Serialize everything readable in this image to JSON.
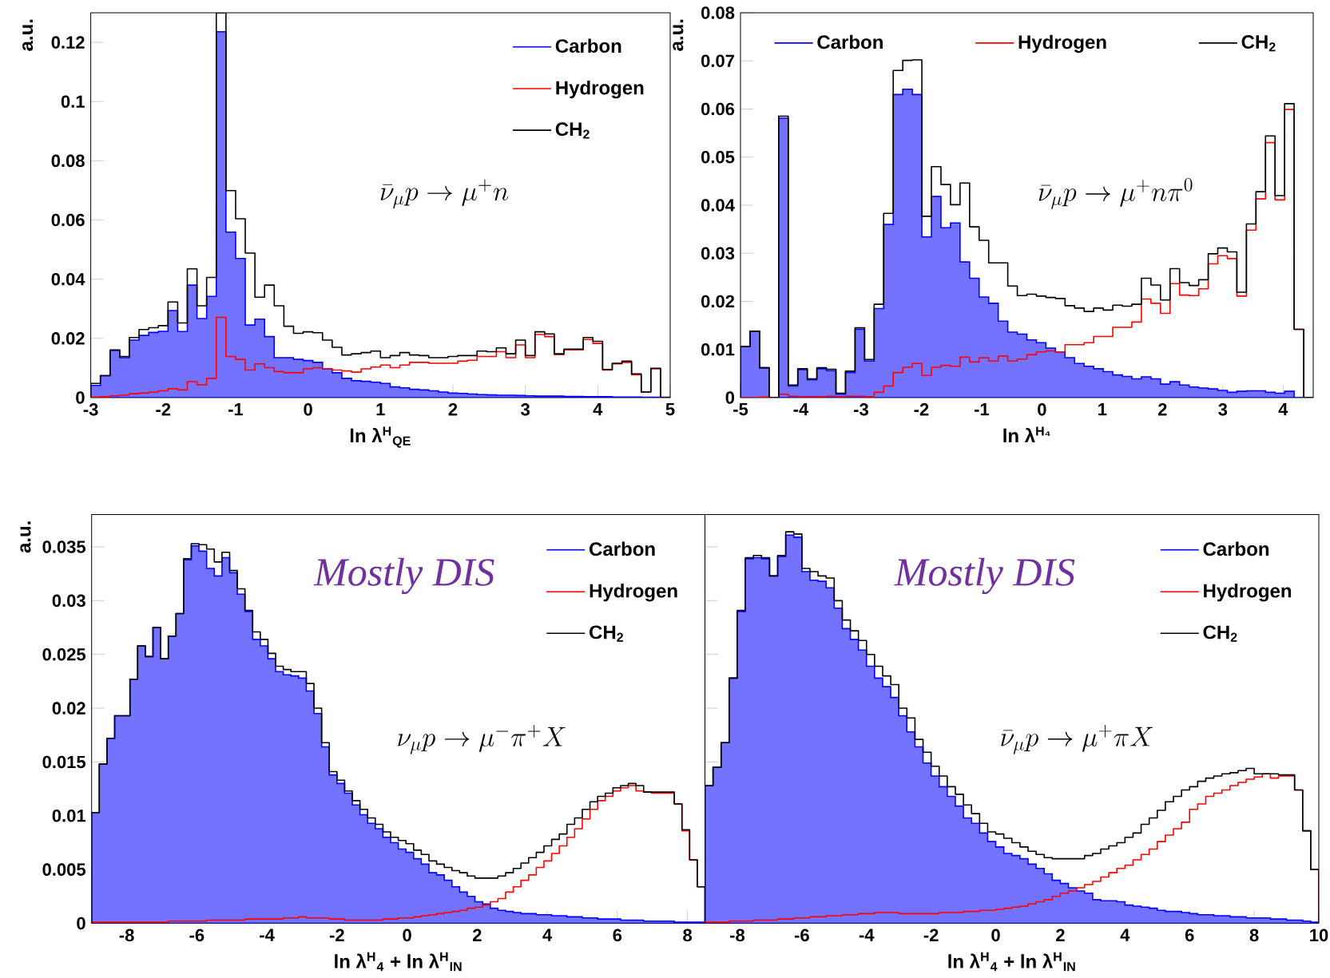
{
  "chart_data": [
    {
      "type": "histogram",
      "xlabel": "ln λ$^{H}$$_{QE}$",
      "ylabel": "a.u.",
      "annotations": [
        "\\bar{\\nu}_{\\mu}p \\rightarrow \\mu^{+}n"
      ],
      "legend": "top right",
      "xlim": [
        -3,
        5
      ],
      "ylim": [
        0,
        0.13
      ],
      "xticks": [
        -3,
        -2,
        -1,
        0,
        1,
        2,
        3,
        4,
        5
      ],
      "yticks": [
        0,
        0.02,
        0.04,
        0.06,
        0.08,
        0.1,
        0.12
      ],
      "bins": [
        -3,
        -2.8667,
        -2.7333,
        -2.6,
        -2.4667,
        -2.3333,
        -2.2,
        -2.0667,
        -1.9333,
        -1.8,
        -1.6667,
        -1.5333,
        -1.4,
        -1.2667,
        -1.1333,
        -1,
        -0.8667,
        -0.7333,
        -0.6,
        -0.4667,
        -0.3333,
        -0.2,
        -0.0667,
        0.0667,
        0.2,
        0.3333,
        0.4667,
        0.6,
        0.7333,
        0.8667,
        1,
        1.1333,
        1.2667,
        1.4,
        1.5333,
        1.6667,
        1.8,
        1.9333,
        2.0667,
        2.2,
        2.3333,
        2.4667,
        2.6,
        2.7333,
        2.8667,
        3,
        3.1333,
        3.2667,
        3.4,
        3.5333,
        3.6667,
        3.8,
        3.9333,
        4.0667,
        4.2,
        4.3333,
        4.4667,
        4.6,
        4.7333,
        4.8667,
        5
      ],
      "series": [
        {
          "name": "Carbon",
          "color": "#0000ff",
          "values": [
            0.0041,
            0.0074,
            0.0159,
            0.0135,
            0.0194,
            0.021,
            0.022,
            0.0224,
            0.0294,
            0.0223,
            0.038,
            0.0267,
            0.0342,
            0.1236,
            0.0559,
            0.047,
            0.0245,
            0.0265,
            0.0206,
            0.0135,
            0.0135,
            0.0129,
            0.0125,
            0.0119,
            0.0097,
            0.0084,
            0.0065,
            0.0057,
            0.0055,
            0.0052,
            0.0048,
            0.0036,
            0.0033,
            0.0028,
            0.0026,
            0.0023,
            0.0019,
            0.0015,
            0.0014,
            0.0012,
            0.001,
            0.0009,
            0.0008,
            0.0008,
            0.0007,
            0.0006,
            0.0005,
            0.0005,
            0.0005,
            0.0004,
            0.0004,
            0.0003,
            0.0003,
            0.0003,
            0.0002,
            0.0002,
            0.0002,
            0.0001,
            0.0001,
            0.0001
          ]
        },
        {
          "name": "Hydrogen",
          "color": "#ff0000",
          "values": [
            0.0002,
            0.0003,
            0.0006,
            0.0008,
            0.0013,
            0.0015,
            0.0018,
            0.0023,
            0.003,
            0.0026,
            0.0054,
            0.0043,
            0.0065,
            0.0271,
            0.0139,
            0.0129,
            0.0093,
            0.0114,
            0.0101,
            0.0088,
            0.0084,
            0.0084,
            0.0097,
            0.0101,
            0.0097,
            0.0093,
            0.009,
            0.0086,
            0.0097,
            0.0103,
            0.011,
            0.0101,
            0.011,
            0.0119,
            0.0119,
            0.0116,
            0.0116,
            0.0116,
            0.0123,
            0.0126,
            0.0139,
            0.0139,
            0.0155,
            0.0135,
            0.0178,
            0.0135,
            0.0213,
            0.0206,
            0.0145,
            0.0161,
            0.0161,
            0.0196,
            0.0183,
            0.0093,
            0.0114,
            0.0119,
            0.0077,
            0.0019,
            0.0097,
            0
          ]
        },
        {
          "name": "CH$_{2}$",
          "color": "#000000",
          "values": [
            0.0048,
            0.0074,
            0.0161,
            0.0139,
            0.0203,
            0.023,
            0.0236,
            0.0243,
            0.0323,
            0.0252,
            0.0435,
            0.031,
            0.0406,
            0.13,
            0.0699,
            0.0604,
            0.0488,
            0.0339,
            0.038,
            0.031,
            0.0241,
            0.0217,
            0.0222,
            0.0219,
            0.0194,
            0.017,
            0.0144,
            0.0148,
            0.0152,
            0.0157,
            0.0135,
            0.0142,
            0.0152,
            0.0144,
            0.0142,
            0.0135,
            0.0135,
            0.0139,
            0.0142,
            0.0142,
            0.0157,
            0.0155,
            0.0168,
            0.0148,
            0.0194,
            0.0142,
            0.0222,
            0.0215,
            0.0148,
            0.0164,
            0.0164,
            0.0203,
            0.019,
            0.0095,
            0.0116,
            0.0123,
            0.008,
            0.0019,
            0.0099,
            0
          ]
        }
      ]
    },
    {
      "type": "histogram",
      "xlabel": "ln λ$^{H₄}$",
      "ylabel": "a.u.",
      "annotations": [
        "\\bar{\\nu}_{\\mu}p \\rightarrow \\mu^{+}n\\pi^{0}"
      ],
      "legend": "top",
      "xlim": [
        -5,
        4.5
      ],
      "ylim": [
        0,
        0.08
      ],
      "xticks": [
        -5,
        -4,
        -3,
        -2,
        -1,
        0,
        1,
        2,
        3,
        4
      ],
      "yticks": [
        0,
        0.01,
        0.02,
        0.03,
        0.04,
        0.05,
        0.06,
        0.07,
        0.08
      ],
      "bins": [
        -5,
        -4.8417,
        -4.6833,
        -4.525,
        -4.3667,
        -4.2083,
        -4.05,
        -3.8917,
        -3.7333,
        -3.575,
        -3.4167,
        -3.2583,
        -3.1,
        -2.9417,
        -2.7833,
        -2.625,
        -2.4667,
        -2.3083,
        -2.15,
        -1.9917,
        -1.8333,
        -1.675,
        -1.5167,
        -1.3583,
        -1.2,
        -1.0417,
        -0.8833,
        -0.725,
        -0.5667,
        -0.4083,
        -0.25,
        -0.0917,
        0.0667,
        0.225,
        0.3833,
        0.5417,
        0.7,
        0.8583,
        1.0167,
        1.175,
        1.3333,
        1.4917,
        1.65,
        1.8083,
        1.9667,
        2.125,
        2.2833,
        2.4417,
        2.6,
        2.7583,
        2.9167,
        3.075,
        3.2333,
        3.3917,
        3.55,
        3.7083,
        3.8667,
        4.025,
        4.1833,
        4.3417,
        4.5
      ],
      "series": [
        {
          "name": "Carbon",
          "color": "#0000ff",
          "values": [
            0.0106,
            0.0138,
            0.0062,
            0,
            0.0581,
            0.0024,
            0.0058,
            0.0037,
            0.006,
            0.0056,
            0.0007,
            0.0052,
            0.0142,
            0.0076,
            0.0185,
            0.036,
            0.063,
            0.0641,
            0.063,
            0.0334,
            0.0418,
            0.0353,
            0.0363,
            0.0282,
            0.0248,
            0.0209,
            0.0196,
            0.0159,
            0.0136,
            0.0132,
            0.012,
            0.0114,
            0.0103,
            0.0095,
            0.0083,
            0.0071,
            0.0065,
            0.006,
            0.0054,
            0.0047,
            0.0044,
            0.0039,
            0.0043,
            0.0039,
            0.0028,
            0.0033,
            0.0026,
            0.0022,
            0.002,
            0.0018,
            0.0015,
            0.0011,
            0.0013,
            0.0014,
            0.0014,
            0.0011,
            0.0009,
            0.0013,
            0,
            0
          ]
        },
        {
          "name": "Hydrogen",
          "color": "#ff0000",
          "values": [
            0,
            0,
            0.0001,
            0,
            0.0007,
            0.0003,
            0.0002,
            0.0002,
            0.0002,
            0.0003,
            0.0002,
            0.0003,
            0.0003,
            0.0002,
            0.0011,
            0.0024,
            0.0052,
            0.0063,
            0.0071,
            0.0046,
            0.0063,
            0.0067,
            0.0065,
            0.0084,
            0.0074,
            0.0083,
            0.0076,
            0.0086,
            0.0076,
            0.008,
            0.0089,
            0.0095,
            0.0097,
            0.0095,
            0.011,
            0.011,
            0.0114,
            0.0127,
            0.0127,
            0.0146,
            0.0146,
            0.0157,
            0.0205,
            0.0196,
            0.0175,
            0.0237,
            0.0213,
            0.0212,
            0.0226,
            0.0278,
            0.0295,
            0.0289,
            0.0211,
            0.0348,
            0.0413,
            0.053,
            0.0411,
            0.0599,
            0.0142,
            0
          ]
        },
        {
          "name": "CH$_{2}$",
          "color": "#000000",
          "values": [
            0.0106,
            0.0138,
            0.0062,
            0,
            0.0585,
            0.0026,
            0.006,
            0.0039,
            0.0062,
            0.0059,
            0.0009,
            0.0055,
            0.0145,
            0.0079,
            0.0194,
            0.0383,
            0.068,
            0.0701,
            0.0702,
            0.0377,
            0.048,
            0.0443,
            0.0401,
            0.0446,
            0.0355,
            0.0327,
            0.028,
            0.028,
            0.0232,
            0.0212,
            0.0215,
            0.0211,
            0.0208,
            0.0206,
            0.0191,
            0.0186,
            0.0179,
            0.0186,
            0.0182,
            0.0192,
            0.019,
            0.0194,
            0.0248,
            0.0234,
            0.0203,
            0.0268,
            0.0239,
            0.0233,
            0.0245,
            0.0299,
            0.0311,
            0.0303,
            0.0219,
            0.0361,
            0.0428,
            0.0544,
            0.042,
            0.0611,
            0.0142,
            0
          ]
        }
      ]
    },
    {
      "type": "histogram",
      "subtitle": "Mostly DIS",
      "xlabel": "ln λ$^{H}$$_{4}$ + ln λ$^{H}$$_{IN}$",
      "ylabel": "a.u.",
      "annotations": [
        "\\nu_{\\mu}p \\rightarrow \\mu^{-}\\pi^{+}X"
      ],
      "legend": "top right",
      "xlim": [
        -9,
        8.5
      ],
      "ylim": [
        0,
        0.038
      ],
      "xticks": [
        -8,
        -6,
        -4,
        -2,
        0,
        2,
        4,
        6,
        8
      ],
      "yticks": [
        0,
        0.005,
        0.01,
        0.015,
        0.02,
        0.025,
        0.03,
        0.035
      ],
      "bins": [
        -9,
        -8.78125,
        -8.5625,
        -8.34375,
        -8.125,
        -7.90625,
        -7.6875,
        -7.46875,
        -7.25,
        -7.03125,
        -6.8125,
        -6.59375,
        -6.375,
        -6.15625,
        -5.9375,
        -5.71875,
        -5.5,
        -5.28125,
        -5.0625,
        -4.84375,
        -4.625,
        -4.40625,
        -4.1875,
        -3.96875,
        -3.75,
        -3.53125,
        -3.3125,
        -3.09375,
        -2.875,
        -2.65625,
        -2.4375,
        -2.21875,
        -2,
        -1.78125,
        -1.5625,
        -1.34375,
        -1.125,
        -0.90625,
        -0.6875,
        -0.46875,
        -0.25,
        -0.03125,
        0.1875,
        0.40625,
        0.625,
        0.84375,
        1.0625,
        1.28125,
        1.5,
        1.71875,
        1.9375,
        2.15625,
        2.375,
        2.59375,
        2.8125,
        3.03125,
        3.25,
        3.46875,
        3.6875,
        3.90625,
        4.125,
        4.34375,
        4.5625,
        4.78125,
        5,
        5.21875,
        5.4375,
        5.65625,
        5.875,
        6.09375,
        6.3125,
        6.53125,
        6.75,
        6.96875,
        7.1875,
        7.40625,
        7.625,
        7.84375,
        8.0625,
        8.28125,
        8.5
      ],
      "series": [
        {
          "name": "Carbon",
          "color": "#0000ff",
          "values": [
            0.0103,
            0.0148,
            0.0172,
            0.0193,
            0.0193,
            0.0227,
            0.0258,
            0.0248,
            0.0275,
            0.0246,
            0.0267,
            0.0288,
            0.0338,
            0.0351,
            0.0346,
            0.033,
            0.0323,
            0.034,
            0.0326,
            0.0306,
            0.029,
            0.0264,
            0.0258,
            0.0246,
            0.0234,
            0.0231,
            0.023,
            0.0228,
            0.0216,
            0.0195,
            0.0164,
            0.0138,
            0.013,
            0.0121,
            0.011,
            0.0101,
            0.0093,
            0.0088,
            0.008,
            0.0075,
            0.0069,
            0.0066,
            0.006,
            0.0055,
            0.0047,
            0.0045,
            0.004,
            0.0034,
            0.0029,
            0.0025,
            0.002,
            0.0018,
            0.0014,
            0.0012,
            0.0011,
            0.001,
            0.0009,
            0.0009,
            0.0008,
            0.0008,
            0.0007,
            0.0007,
            0.0006,
            0.0006,
            0.0005,
            0.0005,
            0.0004,
            0.0004,
            0.0004,
            0.0003,
            0.0003,
            0.0003,
            0.0002,
            0.0002,
            0.0002,
            0.0002,
            0.0001,
            0.0001,
            0.0001,
            0.0001
          ]
        },
        {
          "name": "Hydrogen",
          "color": "#ff0000",
          "values": [
            0.0001,
            0.0001,
            0.0001,
            0.0001,
            0.0001,
            0.0001,
            0.0001,
            0.0001,
            0.0001,
            0.0001,
            0.0002,
            0.0002,
            0.0002,
            0.0002,
            0.0002,
            0.0003,
            0.0003,
            0.0003,
            0.0003,
            0.0003,
            0.0004,
            0.0004,
            0.0004,
            0.0004,
            0.0004,
            0.0005,
            0.0005,
            0.0006,
            0.0005,
            0.0005,
            0.0005,
            0.0004,
            0.0004,
            0.0003,
            0.0003,
            0.0003,
            0.0003,
            0.0003,
            0.0004,
            0.0004,
            0.0005,
            0.0005,
            0.0006,
            0.0007,
            0.0008,
            0.0009,
            0.001,
            0.0011,
            0.0012,
            0.0014,
            0.0015,
            0.0017,
            0.002,
            0.0023,
            0.0029,
            0.0034,
            0.004,
            0.0045,
            0.0052,
            0.0058,
            0.0065,
            0.0072,
            0.008,
            0.0088,
            0.0097,
            0.0106,
            0.0114,
            0.0118,
            0.0123,
            0.0126,
            0.0128,
            0.0123,
            0.0122,
            0.0121,
            0.0121,
            0.0121,
            0.0111,
            0.0086,
            0.0059,
            0.0034
          ]
        },
        {
          "name": "CH$_{2}$",
          "color": "#000000",
          "values": [
            0.0103,
            0.0148,
            0.0172,
            0.0193,
            0.0193,
            0.0227,
            0.0258,
            0.0248,
            0.0275,
            0.0246,
            0.0267,
            0.0288,
            0.0339,
            0.0353,
            0.0352,
            0.0348,
            0.0336,
            0.0345,
            0.0328,
            0.0311,
            0.0291,
            0.0271,
            0.0264,
            0.0251,
            0.0239,
            0.0236,
            0.0234,
            0.0234,
            0.0223,
            0.02,
            0.0168,
            0.0141,
            0.0133,
            0.0123,
            0.0114,
            0.0106,
            0.0098,
            0.0092,
            0.0085,
            0.008,
            0.0077,
            0.0074,
            0.0068,
            0.0064,
            0.0058,
            0.0055,
            0.0052,
            0.0049,
            0.0047,
            0.0044,
            0.0042,
            0.0042,
            0.0042,
            0.0044,
            0.0047,
            0.0051,
            0.0056,
            0.0061,
            0.0066,
            0.0072,
            0.0078,
            0.0083,
            0.0092,
            0.0098,
            0.0106,
            0.0113,
            0.0118,
            0.0121,
            0.0126,
            0.0128,
            0.013,
            0.0128,
            0.0122,
            0.0122,
            0.0122,
            0.0122,
            0.0111,
            0.0087,
            0.0059,
            0.0034
          ]
        }
      ]
    },
    {
      "type": "histogram",
      "subtitle": "Mostly DIS",
      "xlabel": "ln λ$^{H}$$_{4}$ + ln λ$^{H}$$_{IN}$",
      "annotations": [
        "\\bar{\\nu}_{\\mu}p \\rightarrow \\mu^{+}\\pi X"
      ],
      "legend": "top right",
      "tick_labels": "x",
      "xlim": [
        -9,
        10
      ],
      "ylim": [
        0,
        0.038
      ],
      "xticks": [
        -8,
        -6,
        -4,
        -2,
        0,
        2,
        4,
        6,
        8,
        10
      ],
      "yticks": [
        0,
        0.005,
        0.01,
        0.015,
        0.02,
        0.025,
        0.03,
        0.035
      ],
      "bins": [
        -9,
        -8.75,
        -8.5,
        -8.25,
        -8,
        -7.75,
        -7.5,
        -7.25,
        -7,
        -6.75,
        -6.5,
        -6.25,
        -6,
        -5.75,
        -5.5,
        -5.25,
        -5,
        -4.75,
        -4.5,
        -4.25,
        -4,
        -3.75,
        -3.5,
        -3.25,
        -3,
        -2.75,
        -2.5,
        -2.25,
        -2,
        -1.75,
        -1.5,
        -1.25,
        -1,
        -0.75,
        -0.5,
        -0.25,
        0,
        0.25,
        0.5,
        0.75,
        1,
        1.25,
        1.5,
        1.75,
        2,
        2.25,
        2.5,
        2.75,
        3,
        3.25,
        3.5,
        3.75,
        4,
        4.25,
        4.5,
        4.75,
        5,
        5.25,
        5.5,
        5.75,
        6,
        6.25,
        6.5,
        6.75,
        7,
        7.25,
        7.5,
        7.75,
        8,
        8.25,
        8.5,
        8.75,
        9,
        9.25,
        9.5,
        9.75,
        10
      ],
      "series": [
        {
          "name": "Carbon",
          "color": "#0000ff",
          "values": [
            0.0128,
            0.0145,
            0.0168,
            0.0228,
            0.029,
            0.0339,
            0.034,
            0.0339,
            0.0323,
            0.0341,
            0.0361,
            0.0359,
            0.0327,
            0.0319,
            0.0318,
            0.0312,
            0.0293,
            0.0274,
            0.0264,
            0.0254,
            0.0239,
            0.0228,
            0.022,
            0.021,
            0.0193,
            0.0178,
            0.0164,
            0.0149,
            0.0137,
            0.0127,
            0.0118,
            0.0109,
            0.0098,
            0.0093,
            0.0084,
            0.0076,
            0.0071,
            0.0065,
            0.0063,
            0.006,
            0.0055,
            0.0051,
            0.0046,
            0.004,
            0.0037,
            0.0033,
            0.003,
            0.0028,
            0.0022,
            0.0021,
            0.0021,
            0.002,
            0.0017,
            0.0016,
            0.0015,
            0.0014,
            0.0012,
            0.0011,
            0.0011,
            0.001,
            0.0009,
            0.0008,
            0.0008,
            0.0007,
            0.0007,
            0.0006,
            0.0006,
            0.0005,
            0.0005,
            0.0005,
            0.0004,
            0.0004,
            0.0003,
            0.0003,
            0.0002,
            0.0001
          ]
        },
        {
          "name": "Hydrogen",
          "color": "#ff0000",
          "values": [
            0.0001,
            0.0001,
            0.0001,
            0.0002,
            0.0002,
            0.0002,
            0.0003,
            0.0003,
            0.0003,
            0.0004,
            0.0004,
            0.0005,
            0.0005,
            0.0006,
            0.0006,
            0.0007,
            0.0007,
            0.0008,
            0.0008,
            0.0009,
            0.0009,
            0.001,
            0.001,
            0.001,
            0.0009,
            0.0009,
            0.0009,
            0.0009,
            0.0009,
            0.001,
            0.001,
            0.001,
            0.0011,
            0.0011,
            0.0012,
            0.0012,
            0.0013,
            0.0014,
            0.0015,
            0.0016,
            0.0018,
            0.002,
            0.0022,
            0.0025,
            0.0028,
            0.003,
            0.0033,
            0.0036,
            0.0039,
            0.0043,
            0.0047,
            0.0051,
            0.0054,
            0.0059,
            0.0064,
            0.0069,
            0.0076,
            0.0082,
            0.0088,
            0.0094,
            0.0106,
            0.0111,
            0.0118,
            0.0121,
            0.0124,
            0.0128,
            0.0131,
            0.0134,
            0.0136,
            0.0139,
            0.0135,
            0.0137,
            0.0137,
            0.0124,
            0.0086,
            0.005
          ]
        },
        {
          "name": "CH$_{2}$",
          "color": "#000000",
          "values": [
            0.0128,
            0.0145,
            0.0168,
            0.0228,
            0.0291,
            0.034,
            0.0342,
            0.034,
            0.0323,
            0.0342,
            0.0364,
            0.0362,
            0.033,
            0.0327,
            0.0323,
            0.0321,
            0.03,
            0.0282,
            0.0272,
            0.0263,
            0.025,
            0.0239,
            0.023,
            0.0222,
            0.02,
            0.0191,
            0.0171,
            0.0159,
            0.0146,
            0.0137,
            0.0127,
            0.012,
            0.011,
            0.0102,
            0.0093,
            0.0085,
            0.0083,
            0.0079,
            0.0075,
            0.0071,
            0.0067,
            0.0064,
            0.0061,
            0.006,
            0.006,
            0.006,
            0.006,
            0.0063,
            0.0065,
            0.0069,
            0.0072,
            0.0075,
            0.008,
            0.0084,
            0.0092,
            0.0098,
            0.0105,
            0.0113,
            0.0118,
            0.0124,
            0.0127,
            0.0132,
            0.0135,
            0.0137,
            0.0139,
            0.014,
            0.0142,
            0.0144,
            0.0139,
            0.0139,
            0.0139,
            0.0138,
            0.0138,
            0.0124,
            0.0086,
            0.005
          ]
        }
      ]
    }
  ]
}
